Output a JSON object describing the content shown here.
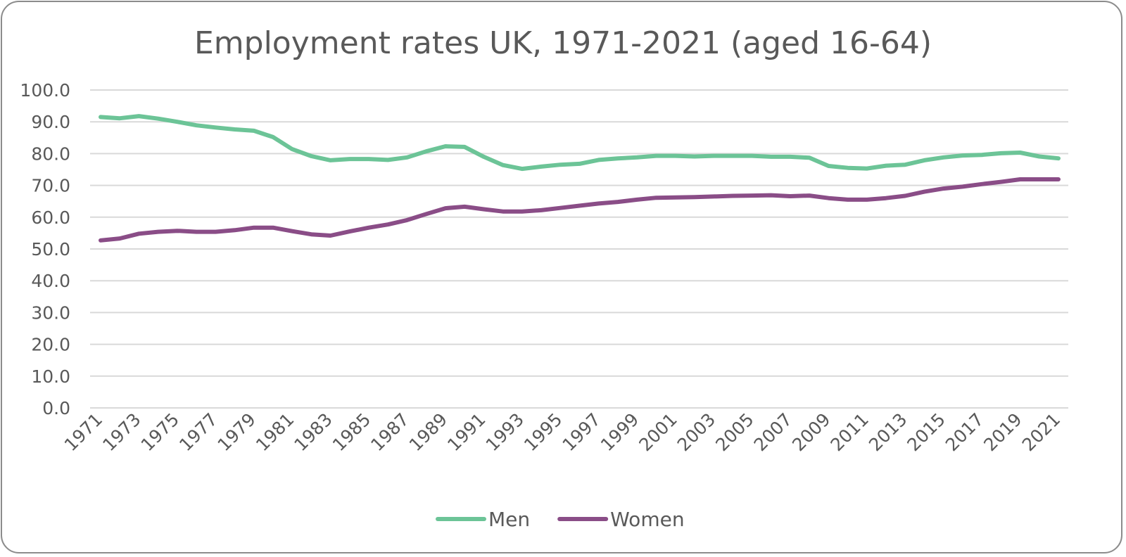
{
  "chart_data": {
    "type": "line",
    "title": "Employment rates UK, 1971-2021 (aged 16-64)",
    "xlabel": "",
    "ylabel": "",
    "ylim": [
      0,
      100
    ],
    "yticks": [
      "0.0",
      "10.0",
      "20.0",
      "30.0",
      "40.0",
      "50.0",
      "60.0",
      "70.0",
      "80.0",
      "90.0",
      "100.0"
    ],
    "x": [
      1971,
      1972,
      1973,
      1974,
      1975,
      1976,
      1977,
      1978,
      1979,
      1980,
      1981,
      1982,
      1983,
      1984,
      1985,
      1986,
      1987,
      1988,
      1989,
      1990,
      1991,
      1992,
      1993,
      1994,
      1995,
      1996,
      1997,
      1998,
      1999,
      2000,
      2001,
      2002,
      2003,
      2004,
      2005,
      2006,
      2007,
      2008,
      2009,
      2010,
      2011,
      2012,
      2013,
      2014,
      2015,
      2016,
      2017,
      2018,
      2019,
      2020,
      2021
    ],
    "xticks_shown": [
      "1971",
      "1973",
      "1975",
      "1977",
      "1979",
      "1981",
      "1983",
      "1985",
      "1987",
      "1989",
      "1991",
      "1993",
      "1995",
      "1997",
      "1999",
      "2001",
      "2003",
      "2005",
      "2007",
      "2009",
      "2011",
      "2013",
      "2015",
      "2017",
      "2019",
      "2021"
    ],
    "grid": true,
    "legend_position": "bottom",
    "series": [
      {
        "name": "Men",
        "color": "#6cc497",
        "values": [
          91.5,
          91.1,
          91.8,
          91.0,
          90.0,
          88.9,
          88.2,
          87.6,
          87.2,
          85.2,
          81.4,
          79.2,
          77.9,
          78.3,
          78.3,
          78.0,
          78.8,
          80.7,
          82.3,
          82.1,
          79.0,
          76.4,
          75.2,
          75.9,
          76.5,
          76.8,
          78.0,
          78.5,
          78.8,
          79.3,
          79.3,
          79.1,
          79.3,
          79.3,
          79.3,
          79.0,
          79.0,
          78.7,
          76.1,
          75.5,
          75.3,
          76.2,
          76.5,
          77.9,
          78.8,
          79.4,
          79.6,
          80.1,
          80.3,
          79.1,
          78.5
        ]
      },
      {
        "name": "Women",
        "color": "#8a4d87",
        "values": [
          52.7,
          53.3,
          54.8,
          55.4,
          55.7,
          55.4,
          55.4,
          55.9,
          56.7,
          56.7,
          55.6,
          54.6,
          54.2,
          55.5,
          56.7,
          57.7,
          59.1,
          61.0,
          62.8,
          63.3,
          62.5,
          61.8,
          61.8,
          62.2,
          62.9,
          63.6,
          64.3,
          64.8,
          65.5,
          66.1,
          66.2,
          66.3,
          66.5,
          66.7,
          66.8,
          66.9,
          66.6,
          66.8,
          66.0,
          65.5,
          65.5,
          66.0,
          66.7,
          68.0,
          69.0,
          69.6,
          70.4,
          71.1,
          71.9,
          71.9,
          71.9
        ]
      }
    ]
  }
}
